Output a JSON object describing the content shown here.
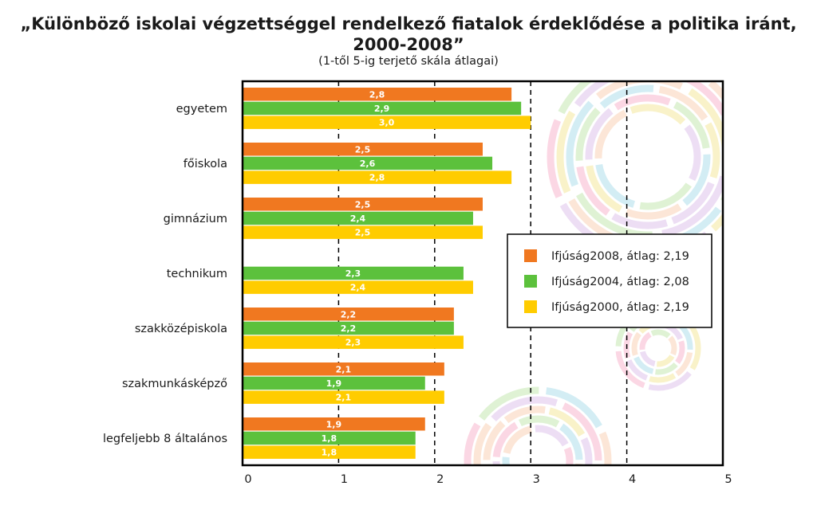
{
  "title_line1": "„Különböző iskolai végzettséggel rendelkező fiatalok érdeklődése a politika iránt,",
  "title_line2": "2000-2008”",
  "subtitle": "(1-től 5-ig terjető skála átlagai)",
  "chart_data": {
    "type": "bar",
    "orientation": "horizontal",
    "title": "„Különböző iskolai végzettséggel rendelkező fiatalok érdeklődése a politika iránt, 2000-2008”",
    "subtitle": "(1-től 5-ig terjető skála átlagai)",
    "categories": [
      "egyetem",
      "főiskola",
      "gimnázium",
      "technikum",
      "szakközépiskola",
      "szakmunkásképző",
      "legfeljebb 8 általános"
    ],
    "series": [
      {
        "name": "Ifjúság2008, átlag: 2,19",
        "color": "#f07820",
        "values": [
          2.8,
          2.5,
          2.5,
          null,
          2.2,
          2.1,
          1.9
        ],
        "labels": [
          "2,8",
          "2,5",
          "2,5",
          null,
          "2,2",
          "2,1",
          "1,9"
        ]
      },
      {
        "name": "Ifjúság2004, átlag: 2,08",
        "color": "#5cc13c",
        "values": [
          2.9,
          2.6,
          2.4,
          2.3,
          2.2,
          1.9,
          1.8
        ],
        "labels": [
          "2,9",
          "2,6",
          "2,4",
          "2,3",
          "2,2",
          "1,9",
          "1,8"
        ]
      },
      {
        "name": "Ifjúság2000, átlag: 2,19",
        "color": "#ffcc00",
        "values": [
          3.0,
          2.8,
          2.5,
          2.4,
          2.3,
          2.1,
          1.8
        ],
        "labels": [
          "3,0",
          "2,8",
          "2,5",
          "2,4",
          "2,3",
          "2,1",
          "1,8"
        ]
      }
    ],
    "xlim": [
      0,
      5
    ],
    "xticks": [
      0,
      1,
      2,
      3,
      4,
      5
    ],
    "xticklabels": [
      "0",
      "1",
      "2",
      "3",
      "4",
      "5"
    ],
    "grid": "vertical dashed",
    "legend_position": "right"
  }
}
